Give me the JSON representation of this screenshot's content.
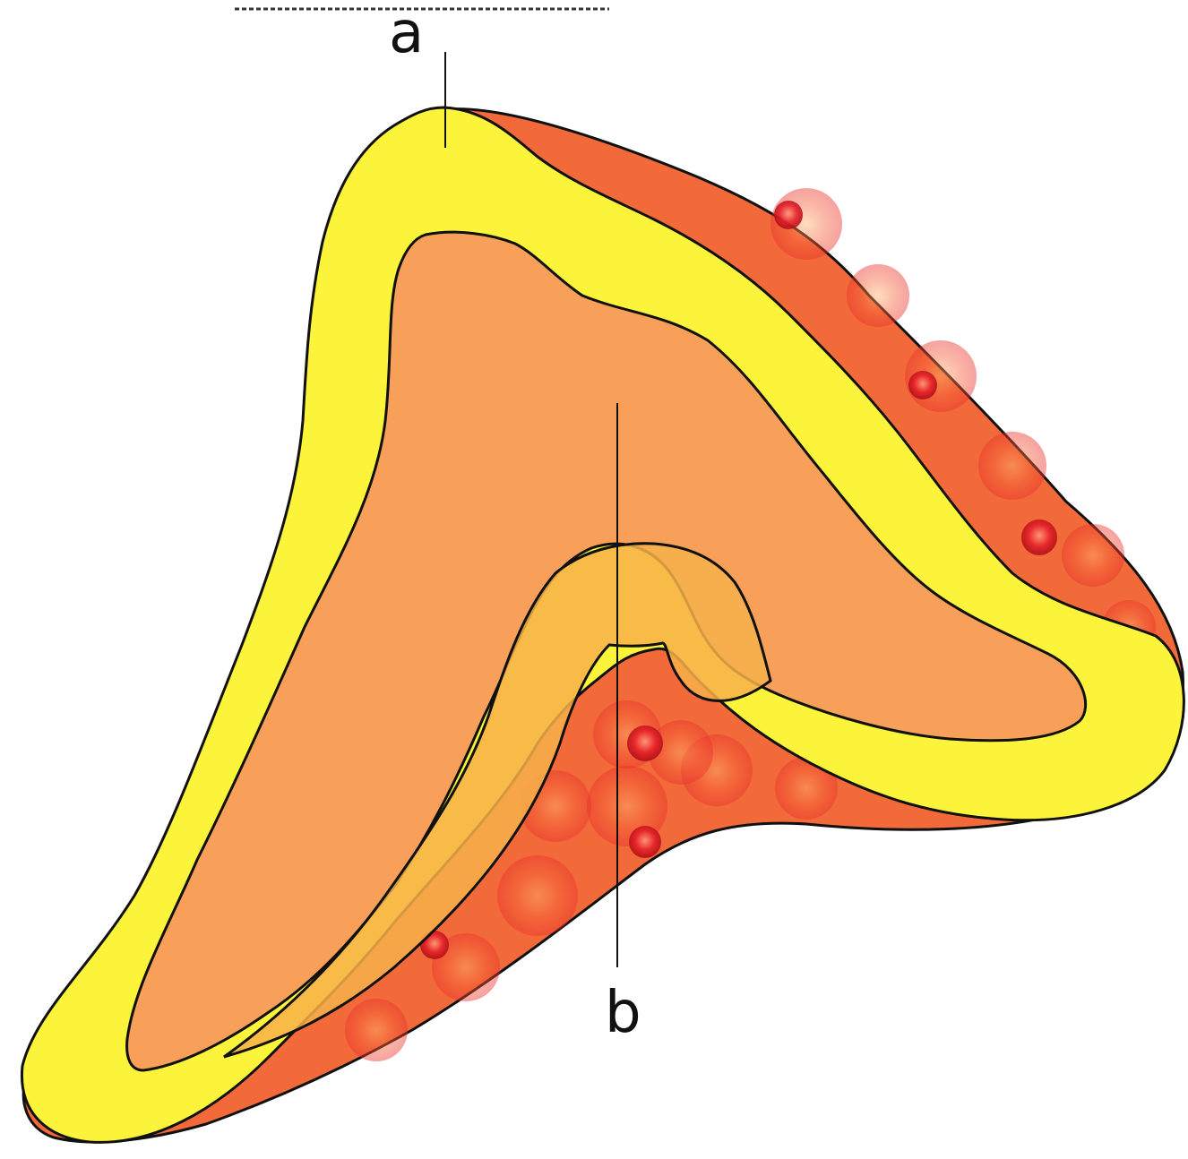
{
  "diagram": {
    "colors": {
      "outer_tissue": "#f26a3a",
      "yellow_layer": "#fbf43a",
      "inner_tissue": "#f8a05a",
      "cell_red": "#e8202a",
      "outline": "#111111",
      "background": "#ffffff"
    },
    "labels": {
      "a": "a",
      "b": "b"
    }
  }
}
